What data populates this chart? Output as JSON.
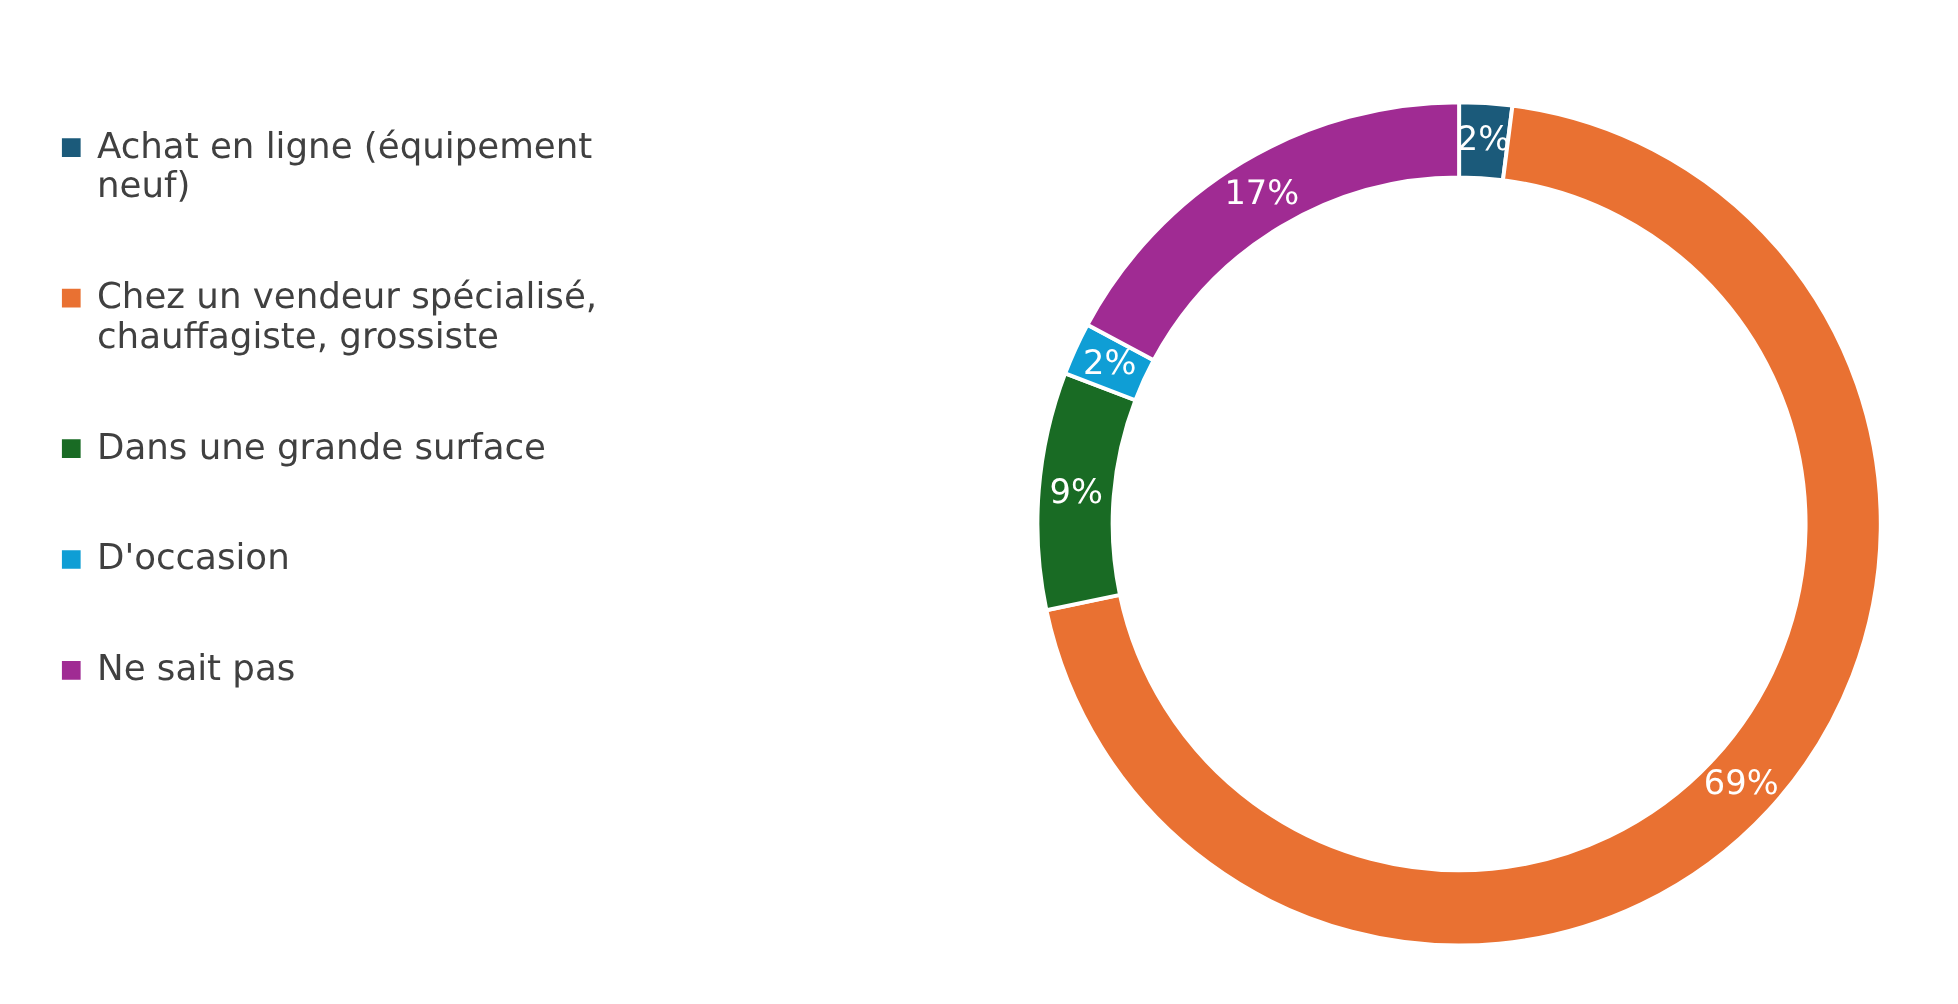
{
  "chart_data": {
    "type": "donut",
    "categories": [
      "Achat en ligne (équipement neuf)",
      "Chez un vendeur spécialisé, chauffagiste, grossiste",
      "Dans une grande surface",
      "D'occasion",
      "Ne sait pas"
    ],
    "values": [
      2,
      69,
      9,
      2,
      17
    ],
    "colors": [
      "#1b5a7a",
      "#e97132",
      "#196b24",
      "#0f9ed5",
      "#a02b93"
    ],
    "value_labels": [
      "2%",
      "69%",
      "9%",
      "2%",
      "17%"
    ],
    "legend": "left"
  }
}
